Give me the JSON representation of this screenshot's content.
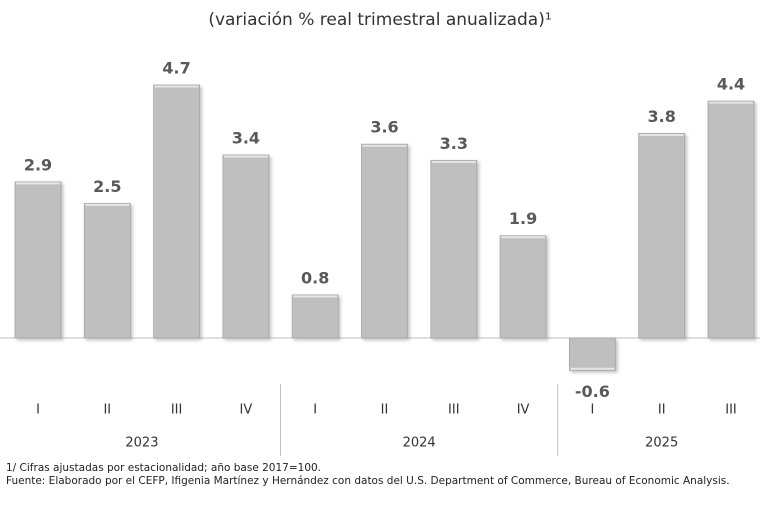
{
  "chart_data": {
    "type": "bar",
    "title": "(variación % real trimestral anualizada)¹",
    "groups": [
      {
        "label": "2023",
        "categories": [
          "I",
          "II",
          "III",
          "IV"
        ]
      },
      {
        "label": "2024",
        "categories": [
          "I",
          "II",
          "III",
          "IV"
        ]
      },
      {
        "label": "2025",
        "categories": [
          "I",
          "II",
          "III"
        ]
      }
    ],
    "values": [
      2.9,
      2.5,
      4.7,
      3.4,
      0.8,
      3.6,
      3.3,
      1.9,
      -0.6,
      3.8,
      4.4
    ],
    "color": "#bfbfbf",
    "notes": [
      "1/ Cifras ajustadas por estacionalidad; año base 2017=100.",
      "Fuente: Elaborado por el CEFP, Ifigenia Martínez y Hernández con datos del U.S. Department of Commerce, Bureau of Economic Analysis."
    ]
  }
}
